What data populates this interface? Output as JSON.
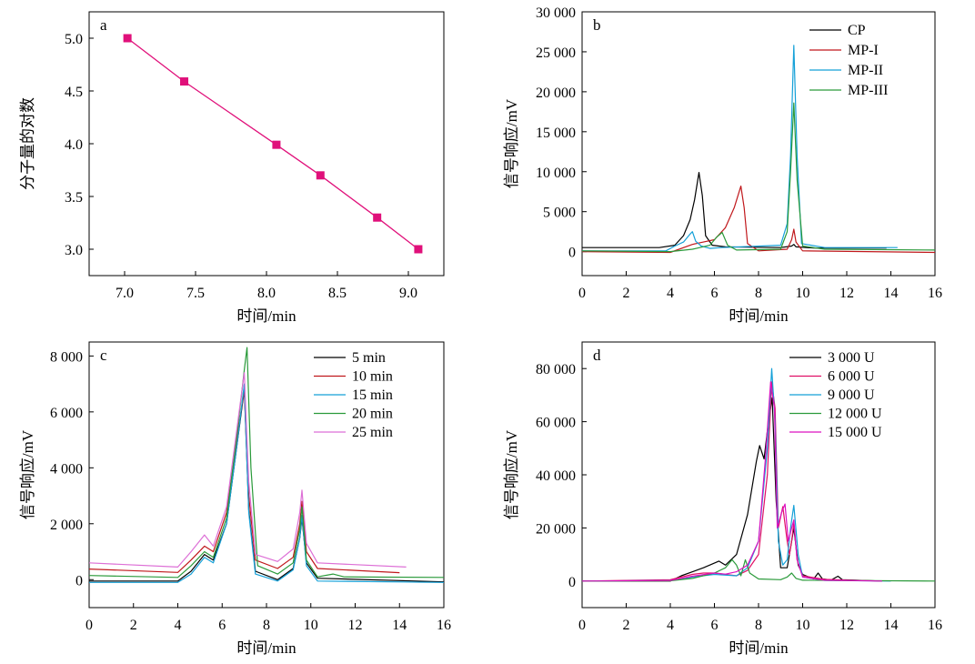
{
  "colors": {
    "magenta": "#e0107a",
    "black": "#000000",
    "red": "#c0181c",
    "cyan": "#14a0d8",
    "green": "#2a9a3a",
    "pink": "#dd6fd6"
  },
  "chart_data": [
    {
      "panel": "a",
      "type": "line",
      "xlabel": "时间/min",
      "ylabel": "分子量的对数",
      "xlim": [
        6.75,
        9.25
      ],
      "ylim": [
        2.75,
        5.25
      ],
      "x_ticks": [
        "7.0",
        "7.5",
        "8.0",
        "8.5",
        "9.0"
      ],
      "y_ticks": [
        "3.0",
        "3.5",
        "4.0",
        "4.5",
        "5.0"
      ],
      "marker": "square",
      "color": "#e0107a",
      "series": [
        {
          "x": [
            7.02,
            7.42,
            8.07,
            8.38,
            8.78,
            9.07
          ],
          "y": [
            5.0,
            4.59,
            3.99,
            3.7,
            3.3,
            3.0
          ]
        }
      ]
    },
    {
      "panel": "b",
      "type": "line",
      "xlabel": "时间/min",
      "ylabel": "信号响应/mV",
      "xlim": [
        0,
        16
      ],
      "ylim": [
        -3000,
        30000
      ],
      "x_ticks": [
        "0",
        "2",
        "4",
        "6",
        "8",
        "10",
        "12",
        "14",
        "16"
      ],
      "y_ticks": [
        "0",
        "5 000",
        "10 000",
        "15 000",
        "20 000",
        "25 000",
        "30 000"
      ],
      "legend_position": "top-right",
      "series": [
        {
          "name": "CP",
          "color": "#000000",
          "x": [
            0,
            3.5,
            4.2,
            4.6,
            4.9,
            5.1,
            5.3,
            5.45,
            5.6,
            5.9,
            6.5,
            9.0,
            9.5,
            9.6,
            9.7,
            10.5,
            13.8
          ],
          "y": [
            500,
            500,
            800,
            2000,
            4000,
            6500,
            9900,
            7000,
            2000,
            800,
            600,
            500,
            700,
            900,
            600,
            450,
            450
          ]
        },
        {
          "name": "MP-I",
          "color": "#c0181c",
          "x": [
            0,
            4.0,
            5.0,
            5.5,
            6.0,
            6.5,
            6.9,
            7.2,
            7.35,
            7.5,
            8.0,
            9.3,
            9.5,
            9.6,
            9.7,
            10.0,
            16
          ],
          "y": [
            0,
            -100,
            900,
            1200,
            1500,
            3000,
            5500,
            8200,
            5500,
            1000,
            100,
            300,
            1500,
            2800,
            1200,
            100,
            -100
          ]
        },
        {
          "name": "MP-II",
          "color": "#14a0d8",
          "x": [
            0,
            3.8,
            4.2,
            4.6,
            4.9,
            5.0,
            5.15,
            5.4,
            5.8,
            6.3,
            9.0,
            9.3,
            9.45,
            9.6,
            9.75,
            9.95,
            11.0,
            14.3
          ],
          "y": [
            100,
            100,
            700,
            1200,
            2200,
            2500,
            1300,
            700,
            400,
            500,
            800,
            3500,
            12000,
            25800,
            12000,
            1000,
            500,
            500
          ]
        },
        {
          "name": "MP-III",
          "color": "#2a9a3a",
          "x": [
            0,
            4.0,
            5.0,
            5.8,
            6.1,
            6.35,
            6.6,
            7.0,
            9.0,
            9.3,
            9.45,
            9.6,
            9.75,
            10.0,
            11.0,
            16
          ],
          "y": [
            100,
            0,
            300,
            800,
            1800,
            2400,
            800,
            200,
            300,
            2500,
            10000,
            18600,
            9000,
            700,
            300,
            200
          ]
        }
      ]
    },
    {
      "panel": "c",
      "type": "line",
      "xlabel": "时间/min",
      "ylabel": "信号响应/mV",
      "xlim": [
        0,
        16
      ],
      "ylim": [
        -1000,
        8500
      ],
      "x_ticks": [
        "0",
        "2",
        "4",
        "6",
        "8",
        "10",
        "12",
        "14",
        "16"
      ],
      "y_ticks": [
        "0",
        "2 000",
        "4 000",
        "6 000",
        "8 000"
      ],
      "legend_position": "top-right",
      "series": [
        {
          "name": "5 min",
          "color": "#000000",
          "x": [
            0,
            4.0,
            4.6,
            5.2,
            5.6,
            6.2,
            6.7,
            7.0,
            7.2,
            7.5,
            8.5,
            9.2,
            9.5,
            9.6,
            9.8,
            10.3,
            16
          ],
          "y": [
            -50,
            -50,
            300,
            900,
            700,
            2000,
            5000,
            6800,
            2500,
            300,
            0,
            400,
            1500,
            2200,
            600,
            50,
            -80
          ]
        },
        {
          "name": "10 min",
          "color": "#c0181c",
          "x": [
            0,
            4.0,
            4.6,
            5.2,
            5.6,
            6.2,
            6.7,
            7.0,
            7.2,
            7.5,
            8.5,
            9.2,
            9.5,
            9.6,
            9.8,
            10.3,
            14.0
          ],
          "y": [
            380,
            260,
            700,
            1200,
            1000,
            2400,
            5200,
            6800,
            3000,
            700,
            400,
            800,
            2000,
            2800,
            1000,
            400,
            250
          ]
        },
        {
          "name": "15 min",
          "color": "#14a0d8",
          "x": [
            0,
            4.0,
            4.6,
            5.2,
            5.6,
            6.2,
            6.7,
            7.0,
            7.2,
            7.5,
            8.5,
            9.2,
            9.5,
            9.6,
            9.8,
            10.3,
            16
          ],
          "y": [
            -100,
            -100,
            200,
            800,
            600,
            2000,
            5000,
            7000,
            2400,
            200,
            -50,
            350,
            1500,
            2300,
            500,
            -50,
            -100
          ]
        },
        {
          "name": "20 min",
          "color": "#2a9a3a",
          "x": [
            0,
            4.0,
            4.6,
            5.2,
            5.6,
            6.2,
            6.7,
            7.0,
            7.12,
            7.3,
            7.6,
            8.5,
            9.2,
            9.5,
            9.6,
            9.8,
            10.3,
            11.0,
            11.5,
            16
          ],
          "y": [
            150,
            80,
            500,
            1000,
            800,
            2200,
            5400,
            7500,
            8300,
            4000,
            500,
            200,
            600,
            1800,
            2600,
            700,
            100,
            200,
            100,
            80
          ]
        },
        {
          "name": "25 min",
          "color": "#dd6fd6",
          "x": [
            0,
            4.0,
            4.6,
            5.2,
            5.6,
            6.2,
            6.7,
            7.0,
            7.2,
            7.5,
            8.5,
            9.2,
            9.5,
            9.6,
            9.8,
            10.3,
            14.3
          ],
          "y": [
            600,
            450,
            1000,
            1600,
            1200,
            2600,
            5600,
            7400,
            3500,
            900,
            650,
            1100,
            2400,
            3200,
            1300,
            600,
            450
          ]
        }
      ]
    },
    {
      "panel": "d",
      "type": "line",
      "xlabel": "时间/min",
      "ylabel": "信号响应/mV",
      "xlim": [
        0,
        16
      ],
      "ylim": [
        -10000,
        90000
      ],
      "x_ticks": [
        "0",
        "2",
        "4",
        "6",
        "8",
        "10",
        "12",
        "14",
        "16"
      ],
      "y_ticks": [
        "0",
        "20 000",
        "40 000",
        "60 000",
        "80 000"
      ],
      "legend_position": "top-right",
      "series": [
        {
          "name": "3 000 U",
          "color": "#000000",
          "x": [
            0,
            4.0,
            4.5,
            5.5,
            6.2,
            6.5,
            7.0,
            7.5,
            7.9,
            8.05,
            8.25,
            8.45,
            8.62,
            8.8,
            9.0,
            9.3,
            9.5,
            9.6,
            9.8,
            10.0,
            10.5,
            10.7,
            10.9,
            11.3,
            11.6,
            11.8,
            13.6
          ],
          "y": [
            0,
            0,
            2000,
            5000,
            7500,
            6000,
            10000,
            25000,
            45000,
            51000,
            46000,
            60000,
            69000,
            30000,
            5000,
            5000,
            15000,
            20000,
            6000,
            2500,
            800,
            3000,
            800,
            400,
            1800,
            500,
            0
          ]
        },
        {
          "name": "6 000 U",
          "color": "#e01066",
          "x": [
            0,
            4.0,
            5.0,
            5.5,
            6.0,
            6.5,
            7.0,
            7.5,
            8.0,
            8.4,
            8.6,
            8.75,
            8.9,
            9.1,
            9.3,
            9.4,
            9.5,
            9.6,
            9.75,
            10.0,
            11.0,
            13.6
          ],
          "y": [
            0,
            500,
            2500,
            3000,
            3000,
            2500,
            2000,
            4000,
            10000,
            40000,
            75000,
            65000,
            20000,
            28000,
            15000,
            10000,
            15000,
            22000,
            8000,
            2000,
            600,
            0
          ]
        },
        {
          "name": "9 000 U",
          "color": "#14a0d8",
          "x": [
            0,
            4.0,
            5.0,
            6.0,
            7.0,
            7.5,
            8.0,
            8.4,
            8.6,
            8.75,
            8.9,
            9.1,
            9.3,
            9.45,
            9.6,
            9.8,
            10.0,
            11.0,
            14.0
          ],
          "y": [
            0,
            200,
            1500,
            2500,
            2000,
            5000,
            15000,
            50000,
            80000,
            60000,
            15000,
            6000,
            8000,
            20000,
            28500,
            10000,
            1500,
            200,
            0
          ]
        },
        {
          "name": "12 000 U",
          "color": "#2a9a3a",
          "x": [
            0,
            4.0,
            5.0,
            6.0,
            6.5,
            6.8,
            7.0,
            7.2,
            7.4,
            7.6,
            8.0,
            9.0,
            9.3,
            9.5,
            9.7,
            10.0,
            16
          ],
          "y": [
            0,
            100,
            1000,
            3000,
            5000,
            8000,
            6000,
            2000,
            8000,
            3000,
            800,
            500,
            1500,
            3000,
            1000,
            300,
            0
          ]
        },
        {
          "name": "15 000 U",
          "color": "#dd10c0",
          "x": [
            0,
            4.0,
            5.0,
            6.0,
            6.5,
            7.0,
            7.5,
            8.0,
            8.3,
            8.55,
            8.72,
            8.85,
            9.05,
            9.2,
            9.35,
            9.5,
            9.6,
            9.75,
            10.0,
            11.0,
            13.6
          ],
          "y": [
            0,
            200,
            1800,
            3000,
            2600,
            3500,
            6000,
            15000,
            45000,
            75000,
            65000,
            20000,
            26000,
            29000,
            15000,
            20000,
            23000,
            8000,
            1500,
            300,
            0
          ]
        }
      ]
    }
  ]
}
